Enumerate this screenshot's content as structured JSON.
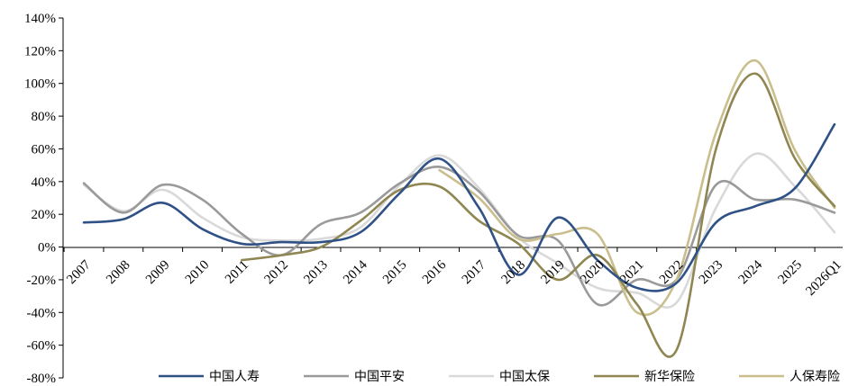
{
  "chart_data": {
    "type": "line",
    "title": "",
    "xlabel": "",
    "ylabel": "",
    "ylim": [
      -80,
      140
    ],
    "y_tick_step": 20,
    "y_tick_suffix": "%",
    "grid": false,
    "legend_position": "bottom-right",
    "categories": [
      "2007",
      "2008",
      "2009",
      "2010",
      "2011",
      "2012",
      "2013",
      "2014",
      "2015",
      "2016",
      "2017",
      "2018",
      "2019",
      "2020",
      "2021",
      "2022",
      "2023",
      "2024",
      "2025",
      "2026Q1"
    ],
    "series": [
      {
        "name": "中国人寿",
        "color": "#2F5186",
        "values": [
          15,
          17,
          27,
          11,
          2,
          3,
          3,
          9,
          33,
          54,
          24,
          -17,
          18,
          -8,
          -25,
          -22,
          15,
          25,
          36,
          75
        ]
      },
      {
        "name": "中国平安",
        "color": "#9A9A9A",
        "values": [
          39,
          21,
          38,
          29,
          8,
          -5,
          14,
          21,
          39,
          49,
          34,
          7,
          4,
          -35,
          -20,
          -20,
          38,
          29,
          29,
          21
        ]
      },
      {
        "name": "中国太保",
        "color": "#D9D9D9",
        "values": [
          38,
          22,
          35,
          18,
          6,
          4,
          5,
          12,
          38,
          56,
          36,
          6,
          -10,
          -25,
          -28,
          -34,
          24,
          57,
          37,
          9
        ]
      },
      {
        "name": "新华保险",
        "color": "#8F8651",
        "values": [
          null,
          null,
          null,
          null,
          -8,
          -5,
          0,
          16,
          35,
          37,
          16,
          2,
          -20,
          -5,
          -35,
          -63,
          60,
          106,
          54,
          25
        ]
      },
      {
        "name": "人保寿险",
        "color": "#C9BE8C",
        "values": [
          null,
          null,
          null,
          null,
          null,
          null,
          null,
          null,
          null,
          47,
          30,
          5,
          8,
          8,
          -40,
          -20,
          70,
          114,
          59,
          24
        ]
      }
    ]
  }
}
